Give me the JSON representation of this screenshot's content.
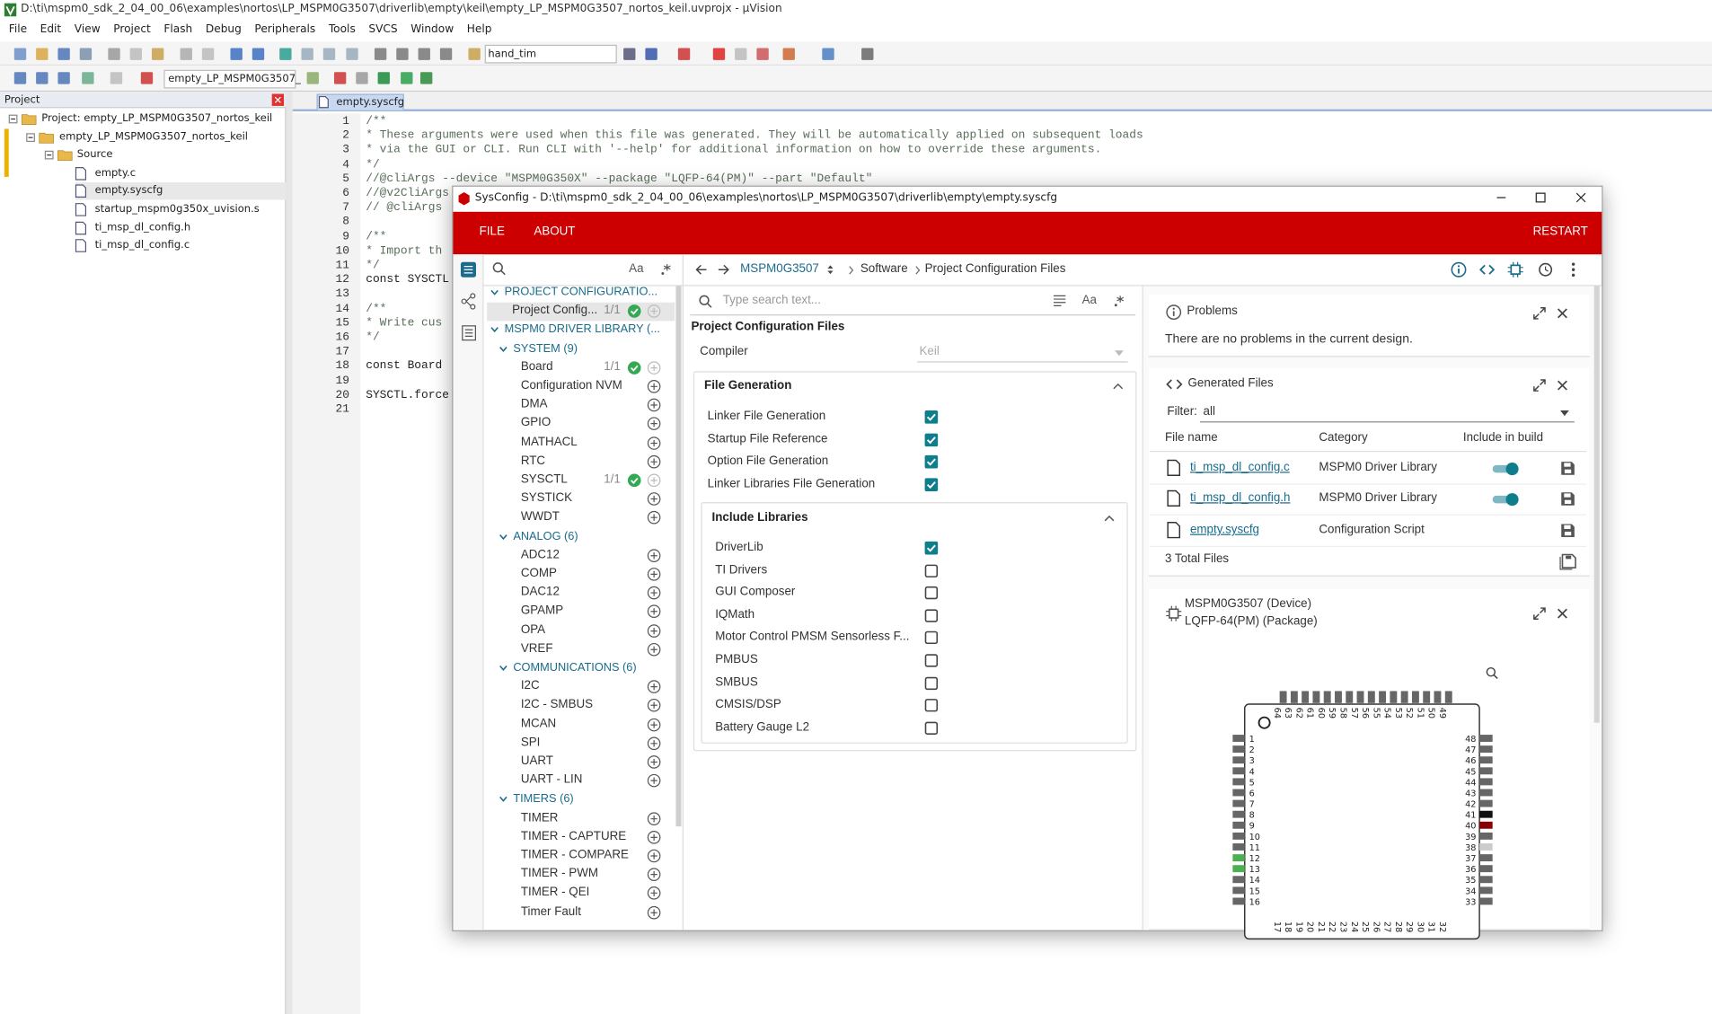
{
  "window": {
    "title": "D:\\ti\\mspm0_sdk_2_04_00_06\\examples\\nortos\\LP_MSPM0G3507\\driverlib\\empty\\keil\\empty_LP_MSPM0G3507_nortos_keil.uvprojx - µVision"
  },
  "menu": [
    "File",
    "Edit",
    "View",
    "Project",
    "Flash",
    "Debug",
    "Peripherals",
    "Tools",
    "SVCS",
    "Window",
    "Help"
  ],
  "toolbar": {
    "target": "hand_tim",
    "project": "empty_LP_MSPM0G3507_"
  },
  "project_panel": {
    "title": "Project",
    "tree": [
      {
        "label": "Project: empty_LP_MSPM0G3507_nortos_keil",
        "children": [
          {
            "label": "empty_LP_MSPM0G3507_nortos_keil",
            "children": [
              {
                "label": "Source",
                "children": [
                  {
                    "label": "empty.c"
                  },
                  {
                    "label": "empty.syscfg",
                    "selected": true
                  },
                  {
                    "label": "startup_mspm0g350x_uvision.s"
                  },
                  {
                    "label": "ti_msp_dl_config.h"
                  },
                  {
                    "label": "ti_msp_dl_config.c"
                  }
                ]
              }
            ]
          }
        ]
      }
    ]
  },
  "editor": {
    "tab": "empty.syscfg",
    "lines": [
      {
        "number": 1,
        "code": "/**"
      },
      {
        "number": 2,
        "code": " * These arguments were used when this file was generated. They will be automatically applied on subsequent loads"
      },
      {
        "number": 3,
        "code": " * via the GUI or CLI. Run CLI with '--help' for additional information on how to override these arguments."
      },
      {
        "number": 4,
        "code": " */"
      },
      {
        "number": 5,
        "code": "//@cliArgs --device \"MSPM0G350X\" --package \"LQFP-64(PM)\" --part \"Default\""
      },
      {
        "number": 6,
        "code": "//@v2CliArgs"
      },
      {
        "number": 7,
        "code": "// @cliArgs"
      },
      {
        "number": 8
      },
      {
        "number": 9,
        "code": "/**"
      },
      {
        "number": 10,
        "code": " * Import th"
      },
      {
        "number": 11,
        "code": " */"
      },
      {
        "number": 12,
        "code": "const SYSCTL"
      },
      {
        "number": 13
      },
      {
        "number": 14,
        "code": "/**"
      },
      {
        "number": 15,
        "code": " * Write cus"
      },
      {
        "number": 16,
        "code": " */"
      },
      {
        "number": 17
      },
      {
        "number": 18,
        "code": "const Board"
      },
      {
        "number": 19
      },
      {
        "number": 20,
        "code": "SYSCTL.force"
      },
      {
        "number": 21
      }
    ]
  },
  "sysconfig": {
    "title": "SysConfig - D:\\ti\\mspm0_sdk_2_04_00_06\\examples\\nortos\\LP_MSPM0G3507\\driverlib\\empty\\empty.syscfg",
    "menu": [
      "FILE",
      "ABOUT"
    ],
    "restart": "RESTART",
    "sidebar": {
      "case_toggle": "Aa",
      "tree": [
        {
          "label": "PROJECT CONFIGURATIO...",
          "children": [
            {
              "label": "Project Config...",
              "count": "1/1",
              "selected": true
            }
          ]
        },
        {
          "label": "MSPM0 DRIVER LIBRARY (...",
          "children": [
            {
              "label": "SYSTEM (9)",
              "children": [
                {
                  "label": "Board",
                  "count": "1/1"
                },
                {
                  "label": "Configuration NVM"
                },
                {
                  "label": "DMA"
                },
                {
                  "label": "GPIO"
                },
                {
                  "label": "MATHACL"
                },
                {
                  "label": "RTC"
                },
                {
                  "label": "SYSCTL",
                  "count": "1/1"
                },
                {
                  "label": "SYSTICK"
                },
                {
                  "label": "WWDT"
                }
              ]
            },
            {
              "label": "ANALOG (6)",
              "children": [
                {
                  "label": "ADC12"
                },
                {
                  "label": "COMP"
                },
                {
                  "label": "DAC12"
                },
                {
                  "label": "GPAMP"
                },
                {
                  "label": "OPA"
                },
                {
                  "label": "VREF"
                }
              ]
            },
            {
              "label": "COMMUNICATIONS (6)",
              "children": [
                {
                  "label": "I2C"
                },
                {
                  "label": "I2C - SMBUS"
                },
                {
                  "label": "MCAN"
                },
                {
                  "label": "SPI"
                },
                {
                  "label": "UART"
                },
                {
                  "label": "UART - LIN"
                }
              ]
            },
            {
              "label": "TIMERS (6)",
              "children": [
                {
                  "label": "TIMER"
                },
                {
                  "label": "TIMER - CAPTURE"
                },
                {
                  "label": "TIMER - COMPARE"
                },
                {
                  "label": "TIMER - PWM"
                },
                {
                  "label": "TIMER - QEI"
                },
                {
                  "label": "Timer Fault"
                }
              ]
            }
          ]
        }
      ]
    },
    "breadcrumb": [
      "MSPM0G3507",
      "Software",
      "Project Configuration Files"
    ],
    "content": {
      "search_placeholder": "Type search text...",
      "case_toggle": "Aa",
      "heading": "Project Configuration Files",
      "compiler": {
        "label": "Compiler",
        "value": "Keil"
      },
      "file_generation": {
        "title": "File Generation",
        "options": [
          {
            "label": "Linker File Generation",
            "checked": true
          },
          {
            "label": "Startup File Reference",
            "checked": true
          },
          {
            "label": "Option File Generation",
            "checked": true
          },
          {
            "label": "Linker Libraries File Generation",
            "checked": true
          }
        ]
      },
      "include_libraries": {
        "title": "Include Libraries",
        "options": [
          {
            "label": "DriverLib",
            "checked": true
          },
          {
            "label": "TI Drivers",
            "checked": false
          },
          {
            "label": "GUI Composer",
            "checked": false
          },
          {
            "label": "IQMath",
            "checked": false
          },
          {
            "label": "Motor Control PMSM Sensorless F...",
            "checked": false
          },
          {
            "label": "PMBUS",
            "checked": false
          },
          {
            "label": "SMBUS",
            "checked": false
          },
          {
            "label": "CMSIS/DSP",
            "checked": false
          },
          {
            "label": "Battery Gauge L2",
            "checked": false
          }
        ]
      }
    },
    "problems": {
      "title": "Problems",
      "message": "There are no problems in the current design."
    },
    "generated_files": {
      "title": "Generated Files",
      "filter_label": "Filter:",
      "filter_value": "all",
      "columns": [
        "File name",
        "Category",
        "Include in build"
      ],
      "rows": [
        {
          "file": "ti_msp_dl_config.c",
          "category": "MSPM0 Driver Library",
          "include": true
        },
        {
          "file": "ti_msp_dl_config.h",
          "category": "MSPM0 Driver Library",
          "include": true
        },
        {
          "file": "empty.syscfg",
          "category": "Configuration Script"
        }
      ],
      "total": "3 Total Files"
    },
    "device": {
      "device": "MSPM0G3507 (Device)",
      "package": "LQFP-64(PM) (Package)",
      "pins": {
        "top": [
          64,
          63,
          62,
          61,
          60,
          59,
          58,
          57,
          56,
          55,
          54,
          53,
          52,
          51,
          50,
          49
        ],
        "left": [
          1,
          2,
          3,
          4,
          5,
          6,
          7,
          8,
          9,
          10,
          11,
          12,
          13,
          14,
          15,
          16
        ],
        "right": [
          48,
          47,
          46,
          45,
          44,
          43,
          42,
          41,
          40,
          39,
          38,
          37,
          36,
          35,
          34,
          33
        ],
        "bottom": [
          17,
          18,
          19,
          20,
          21,
          22,
          23,
          24,
          25,
          26,
          27,
          28,
          29,
          30,
          31,
          32
        ]
      },
      "highlighted": [
        {
          "pin": 12,
          "color": "#4caf50"
        },
        {
          "pin": 13,
          "color": "#4caf50"
        },
        {
          "pin": 41,
          "color": "#111111"
        },
        {
          "pin": 40,
          "color": "#8b0000"
        },
        {
          "pin": 38,
          "color": "#cccccc"
        }
      ]
    }
  }
}
